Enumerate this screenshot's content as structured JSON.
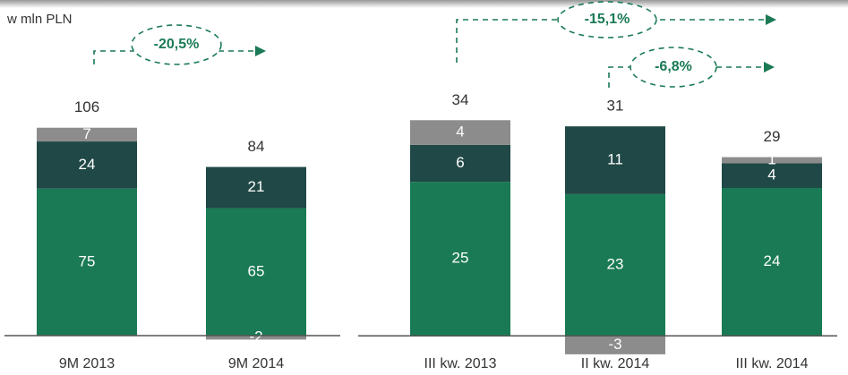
{
  "chart_data": [
    {
      "type": "bar",
      "stacked": true,
      "y_label": "w mln PLN",
      "categories": [
        "9M 2013",
        "9M 2014"
      ],
      "series": [
        {
          "color": "#1a7a55",
          "values": [
            75,
            65
          ]
        },
        {
          "color": "#1f4846",
          "values": [
            24,
            21
          ]
        },
        {
          "color": "#8c8c8c",
          "values": [
            7,
            -2
          ]
        }
      ],
      "totals": [
        106,
        84
      ],
      "annotations": [
        "-20,5%"
      ],
      "ylim": [
        -11.4,
        162
      ]
    },
    {
      "type": "bar",
      "stacked": true,
      "categories": [
        "III kw. 2013",
        "II kw. 2014",
        "III kw. 2014"
      ],
      "series": [
        {
          "color": "#1a7a55",
          "values": [
            25,
            23,
            24
          ]
        },
        {
          "color": "#1f4846",
          "values": [
            6,
            11,
            4
          ]
        },
        {
          "color": "#8c8c8c",
          "values": [
            4,
            -3,
            1
          ]
        }
      ],
      "totals": [
        34,
        31,
        29
      ],
      "annotations": [
        "-15,1%",
        "-6,8%"
      ],
      "ylim": [
        -3.6,
        51.6
      ]
    }
  ]
}
